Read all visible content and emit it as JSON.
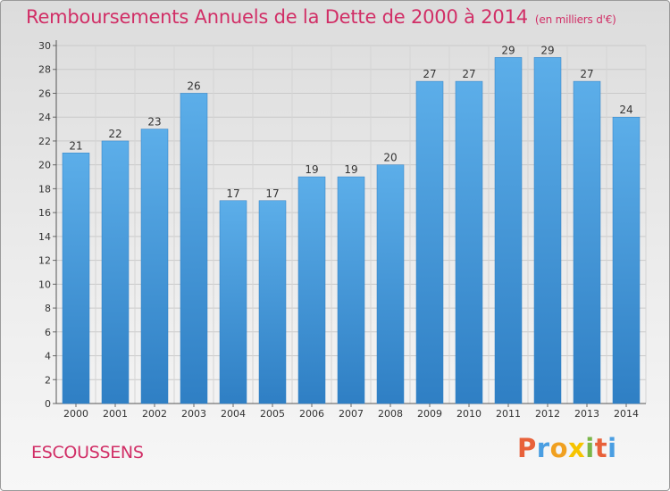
{
  "chart_data": {
    "type": "bar",
    "title": "Remboursements Annuels de la Dette de 2000 à 2014",
    "unit": "(en milliers d'€)",
    "categories": [
      "2000",
      "2001",
      "2002",
      "2003",
      "2004",
      "2005",
      "2006",
      "2007",
      "2008",
      "2009",
      "2010",
      "2011",
      "2012",
      "2013",
      "2014"
    ],
    "values": [
      21,
      22,
      23,
      26,
      17,
      17,
      19,
      19,
      20,
      27,
      27,
      29,
      29,
      27,
      24
    ],
    "xlabel": "",
    "ylabel": "",
    "ylim": [
      0,
      30
    ],
    "yticks": [
      0,
      2,
      4,
      6,
      8,
      10,
      12,
      14,
      16,
      18,
      20,
      22,
      24,
      26,
      28,
      30
    ],
    "grid": true,
    "bar_color": "#4a9ee2"
  },
  "footer": {
    "location": "ESCOUSSENS",
    "brand": "Proxiti"
  },
  "colors": {
    "accent": "#d12e66",
    "brand_letters": [
      "#e8613a",
      "#4a9ee2",
      "#f0a020",
      "#f6c400",
      "#7ab648",
      "#e8613a",
      "#4a9ee2"
    ]
  }
}
